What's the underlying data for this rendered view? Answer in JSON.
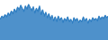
{
  "chart_data": {
    "type": "area",
    "color": "#2f7ec2",
    "tick_labels": false,
    "grid": false,
    "x": [
      1,
      2,
      3,
      4,
      5,
      6,
      7,
      8,
      9,
      10,
      11,
      12,
      13,
      14,
      15,
      16,
      17,
      18,
      19,
      20,
      21,
      22,
      23,
      24,
      25,
      26,
      27,
      28,
      29,
      30,
      31,
      32,
      33,
      34,
      35,
      36,
      37,
      38,
      39,
      40,
      41,
      42,
      43,
      44,
      45,
      46,
      47,
      48,
      49,
      50,
      51,
      52,
      53,
      54,
      55,
      56,
      57,
      58,
      59,
      60,
      61,
      62,
      63,
      64,
      65,
      66,
      67,
      68,
      69,
      70
    ],
    "values": [
      55,
      62,
      58,
      66,
      60,
      70,
      64,
      75,
      68,
      80,
      72,
      85,
      78,
      90,
      82,
      74,
      88,
      80,
      92,
      84,
      76,
      86,
      70,
      82,
      74,
      88,
      66,
      78,
      62,
      72,
      58,
      68,
      54,
      64,
      50,
      60,
      48,
      62,
      52,
      58,
      46,
      56,
      50,
      60,
      48,
      54,
      44,
      58,
      50,
      56,
      46,
      52,
      48,
      60,
      50,
      56,
      44,
      54,
      48,
      58,
      52,
      56,
      50,
      62,
      54,
      60,
      56,
      64,
      58,
      62
    ],
    "xlim": [
      1,
      70
    ],
    "ylim": [
      0,
      100
    ]
  }
}
